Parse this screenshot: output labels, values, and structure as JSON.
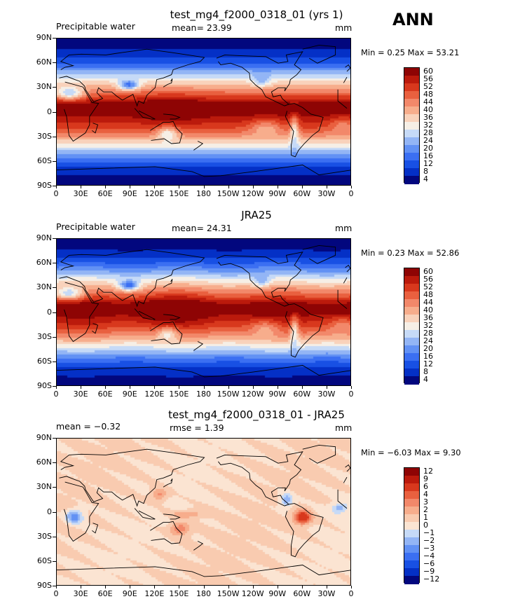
{
  "page": {
    "season": "ANN"
  },
  "xticks": [
    "0",
    "30E",
    "60E",
    "90E",
    "120E",
    "150E",
    "180",
    "150W",
    "120W",
    "90W",
    "60W",
    "30W",
    "0"
  ],
  "yticks": [
    "90N",
    "60N",
    "30N",
    "0",
    "30S",
    "60S",
    "90S"
  ],
  "colors": {
    "abs_scale": [
      "#02077e",
      "#0430c6",
      "#1850e4",
      "#3b6ff2",
      "#6291f4",
      "#93b5f5",
      "#c6daf7",
      "#f6efe6",
      "#f9d2bb",
      "#f7ad8c",
      "#f2886a",
      "#e9603f",
      "#d8381d",
      "#bb1a0c",
      "#8e0404"
    ],
    "diff_scale": [
      "#02077e",
      "#0430c6",
      "#1850e4",
      "#3b6ff2",
      "#6291f4",
      "#93b5f5",
      "#c6daf7",
      "#fbe4d2",
      "#f9cbb0",
      "#f7ad8c",
      "#f2886a",
      "#e9603f",
      "#d8381d",
      "#bb1a0c",
      "#8e0404"
    ]
  },
  "panels": [
    {
      "title": "test_mg4_f2000_0318_01 (yrs 1)",
      "left_label": "Precipitable water",
      "center_label": "mean=   23.99",
      "units": "mm",
      "minmax": "Min =    0.25  Max =   53.21",
      "cb_labels": [
        "60",
        "56",
        "52",
        "48",
        "44",
        "40",
        "36",
        "32",
        "28",
        "24",
        "20",
        "16",
        "12",
        "8",
        "4"
      ]
    },
    {
      "title": "JRA25",
      "left_label": "Precipitable water",
      "center_label": "mean=   24.31",
      "units": "mm",
      "minmax": "Min =    0.23  Max =   52.86",
      "cb_labels": [
        "60",
        "56",
        "52",
        "48",
        "44",
        "40",
        "36",
        "32",
        "28",
        "24",
        "20",
        "16",
        "12",
        "8",
        "4"
      ]
    },
    {
      "title": "test_mg4_f2000_0318_01 - JRA25",
      "left_label": "mean =   −0.32",
      "center_label": "rmse =    1.39",
      "units": "mm",
      "minmax": "Min =   −6.03  Max =    9.30",
      "cb_labels": [
        "12",
        "9",
        "6",
        "4",
        "3",
        "2",
        "1",
        "0",
        "−1",
        "−2",
        "−3",
        "−4",
        "−6",
        "−9",
        "−12"
      ]
    }
  ],
  "chart_data": [
    {
      "type": "heatmap",
      "title": "test_mg4_f2000_0318_01 (yrs 1)",
      "subtitle": "Precipitable water",
      "units": "mm",
      "mean": 23.99,
      "min": 0.25,
      "max": 53.21,
      "xlim": [
        0,
        360
      ],
      "ylim": [
        -90,
        90
      ],
      "contour_levels": [
        4,
        8,
        12,
        16,
        20,
        24,
        28,
        32,
        36,
        40,
        44,
        48,
        52,
        56,
        60
      ],
      "grid": false
    },
    {
      "type": "heatmap",
      "title": "JRA25",
      "subtitle": "Precipitable water",
      "units": "mm",
      "mean": 24.31,
      "min": 0.23,
      "max": 52.86,
      "xlim": [
        0,
        360
      ],
      "ylim": [
        -90,
        90
      ],
      "contour_levels": [
        4,
        8,
        12,
        16,
        20,
        24,
        28,
        32,
        36,
        40,
        44,
        48,
        52,
        56,
        60
      ],
      "grid": false
    },
    {
      "type": "heatmap",
      "title": "test_mg4_f2000_0318_01 - JRA25",
      "units": "mm",
      "mean": -0.32,
      "rmse": 1.39,
      "min": -6.03,
      "max": 9.3,
      "xlim": [
        0,
        360
      ],
      "ylim": [
        -90,
        90
      ],
      "contour_levels": [
        -12,
        -9,
        -6,
        -4,
        -3,
        -2,
        -1,
        0,
        1,
        2,
        3,
        4,
        6,
        9,
        12
      ],
      "grid": false
    }
  ]
}
